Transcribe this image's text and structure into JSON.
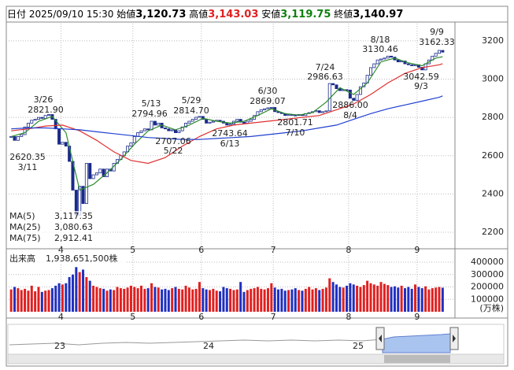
{
  "header": {
    "date_label": "日付",
    "datetime": "2025/09/10 15:30",
    "open_label": "始値",
    "open": "3,120.73",
    "high_label": "高値",
    "high": "3,143.03",
    "low_label": "安値",
    "low": "3,119.75",
    "close_label": "終値",
    "close": "3,140.97"
  },
  "chart_data": [
    {
      "type": "candlestick",
      "values": [
        2700,
        2680,
        2700,
        2710,
        2750,
        2770,
        2785,
        2790,
        2800,
        2795,
        2810,
        2815,
        2790,
        2740,
        2660,
        2670,
        2650,
        2570,
        2420,
        2290,
        2440,
        2350,
        2560,
        2480,
        2500,
        2510,
        2530,
        2490,
        2530,
        2520,
        2560,
        2580,
        2600,
        2620,
        2650,
        2667,
        2700,
        2720,
        2730,
        2740,
        2735,
        2780,
        2760,
        2770,
        2745,
        2740,
        2730,
        2735,
        2720,
        2730,
        2750,
        2770,
        2780,
        2790,
        2801,
        2805,
        2790,
        2770,
        2775,
        2780,
        2785,
        2780,
        2770,
        2760,
        2765,
        2780,
        2790,
        2775,
        2770,
        2780,
        2790,
        2810,
        2830,
        2840,
        2845,
        2850,
        2852,
        2830,
        2825,
        2820,
        2810,
        2815,
        2812,
        2810,
        2815,
        2810,
        2820,
        2825,
        2830,
        2835,
        2825,
        2830,
        2834,
        2977,
        2970,
        2950,
        2940,
        2945,
        2943,
        2900,
        2889,
        2920,
        2960,
        2980,
        3020,
        3060,
        3080,
        3100,
        3105,
        3110,
        3120,
        3115,
        3100,
        3090,
        3095,
        3080,
        3075,
        3070,
        3075,
        3062,
        3048,
        3080,
        3100,
        3120,
        3135,
        3150,
        3141
      ],
      "colors": {
        "up": "#ffffff",
        "down": "#1a2a8a",
        "edge": "#1a2a8a"
      },
      "series": [
        {
          "name": "MA(5)",
          "color": "#2e8b2e",
          "current": {
            "value": 3117.35,
            "label": "3,117.35"
          },
          "x": [
            0,
            4,
            8,
            12,
            16,
            20,
            24,
            28,
            32,
            36,
            40,
            44,
            48,
            52,
            56,
            60,
            64,
            68,
            72,
            76,
            80,
            84,
            88,
            92,
            96,
            100,
            104,
            108,
            112,
            116,
            120,
            124,
            126
          ],
          "values": [
            2700,
            2720,
            2780,
            2805,
            2720,
            2420,
            2450,
            2510,
            2580,
            2660,
            2730,
            2760,
            2735,
            2760,
            2795,
            2780,
            2770,
            2780,
            2810,
            2845,
            2820,
            2812,
            2825,
            2880,
            2955,
            2920,
            2980,
            3090,
            3110,
            3085,
            3070,
            3110,
            3117.35
          ]
        },
        {
          "name": "MA(25)",
          "color": "#e03030",
          "current": {
            "value": 3080.63,
            "label": "3,080.63"
          },
          "x": [
            0,
            5,
            10,
            15,
            20,
            25,
            30,
            35,
            40,
            45,
            50,
            55,
            60,
            65,
            70,
            75,
            80,
            85,
            90,
            95,
            100,
            105,
            110,
            115,
            120,
            125,
            126
          ],
          "values": [
            2730,
            2740,
            2755,
            2760,
            2730,
            2680,
            2620,
            2575,
            2560,
            2590,
            2650,
            2700,
            2740,
            2760,
            2770,
            2780,
            2790,
            2800,
            2810,
            2840,
            2870,
            2920,
            2980,
            3030,
            3060,
            3075,
            3080.63
          ]
        },
        {
          "name": "MA(75)",
          "color": "#2040d0",
          "current": {
            "value": 2912.41,
            "label": "2,912.41"
          },
          "x": [
            0,
            5,
            10,
            15,
            20,
            25,
            30,
            35,
            40,
            45,
            50,
            55,
            60,
            65,
            70,
            75,
            80,
            85,
            90,
            95,
            100,
            105,
            110,
            115,
            120,
            125,
            126
          ],
          "values": [
            2740,
            2745,
            2745,
            2740,
            2735,
            2725,
            2715,
            2705,
            2695,
            2690,
            2685,
            2685,
            2690,
            2695,
            2700,
            2710,
            2720,
            2730,
            2745,
            2760,
            2790,
            2820,
            2845,
            2865,
            2885,
            2905,
            2912.41
          ]
        }
      ],
      "xlim": [
        -0.5,
        129.6
      ],
      "xticks": [
        {
          "value": 15,
          "label": "4"
        },
        {
          "value": 36,
          "label": "5"
        },
        {
          "value": 56,
          "label": "6"
        },
        {
          "value": 77,
          "label": "7"
        },
        {
          "value": 99,
          "label": "8"
        },
        {
          "value": 119,
          "label": "9"
        }
      ],
      "ylim": [
        2126,
        3290
      ],
      "yticks": [
        2200,
        2400,
        2600,
        2800,
        3000,
        3200
      ],
      "grid": true,
      "annotations": [
        {
          "date": "3/26",
          "price": "2821.90"
        },
        {
          "date": "3/11",
          "price": "2620.35"
        },
        {
          "date": "5/13",
          "price": "2794.96"
        },
        {
          "date": "5/29",
          "price": "2814.70"
        },
        {
          "date": "5/22",
          "price": "2707.06"
        },
        {
          "date": "6/30",
          "price": "2869.07"
        },
        {
          "date": "6/13",
          "price": "2743.64"
        },
        {
          "date": "7/10",
          "price": "2801.71"
        },
        {
          "date": "7/24",
          "price": "2986.63"
        },
        {
          "date": "8/4",
          "price": "2886.00"
        },
        {
          "date": "8/18",
          "price": "3130.46"
        },
        {
          "date": "9/9",
          "price": "3162.33"
        },
        {
          "date": "9/3",
          "price": "3042.59"
        }
      ]
    },
    {
      "type": "bar",
      "title": "出来高",
      "subtitle": "1,938,651,500株",
      "unit_label": "(万株)",
      "colors": {
        "up": "#e02020",
        "down": "#2030c0"
      },
      "values": [
        180000,
        200000,
        190000,
        175000,
        185000,
        170000,
        210000,
        165000,
        200000,
        160000,
        170000,
        175000,
        190000,
        210000,
        230000,
        220000,
        230000,
        280000,
        300000,
        360000,
        320000,
        340000,
        280000,
        250000,
        210000,
        200000,
        190000,
        185000,
        170000,
        180000,
        175000,
        200000,
        190000,
        185000,
        195000,
        210000,
        200000,
        190000,
        210000,
        185000,
        190000,
        230000,
        200000,
        195000,
        180000,
        185000,
        175000,
        190000,
        200000,
        185000,
        180000,
        210000,
        195000,
        180000,
        185000,
        240000,
        190000,
        180000,
        175000,
        185000,
        170000,
        165000,
        200000,
        190000,
        185000,
        175000,
        180000,
        240000,
        160000,
        175000,
        185000,
        190000,
        200000,
        185000,
        180000,
        190000,
        230000,
        195000,
        180000,
        185000,
        170000,
        175000,
        180000,
        190000,
        175000,
        170000,
        185000,
        200000,
        180000,
        190000,
        175000,
        185000,
        195000,
        270000,
        240000,
        220000,
        200000,
        195000,
        210000,
        230000,
        220000,
        210000,
        200000,
        215000,
        250000,
        230000,
        220000,
        210000,
        240000,
        225000,
        215000,
        200000,
        205000,
        195000,
        210000,
        190000,
        200000,
        185000,
        220000,
        200000,
        190000,
        205000,
        180000,
        190000,
        195000,
        200000,
        193865
      ],
      "xlim": [
        -0.5,
        129.6
      ],
      "xticks": [
        {
          "value": 15,
          "label": "4"
        },
        {
          "value": 36,
          "label": "5"
        },
        {
          "value": 56,
          "label": "6"
        },
        {
          "value": 77,
          "label": "7"
        },
        {
          "value": 99,
          "label": "8"
        },
        {
          "value": 119,
          "label": "9"
        }
      ],
      "ylim": [
        0,
        470000
      ],
      "yticks": [
        100000,
        200000,
        300000,
        400000
      ],
      "grid": true
    }
  ],
  "navigator": {
    "labels": [
      "23",
      "24",
      "25"
    ]
  }
}
